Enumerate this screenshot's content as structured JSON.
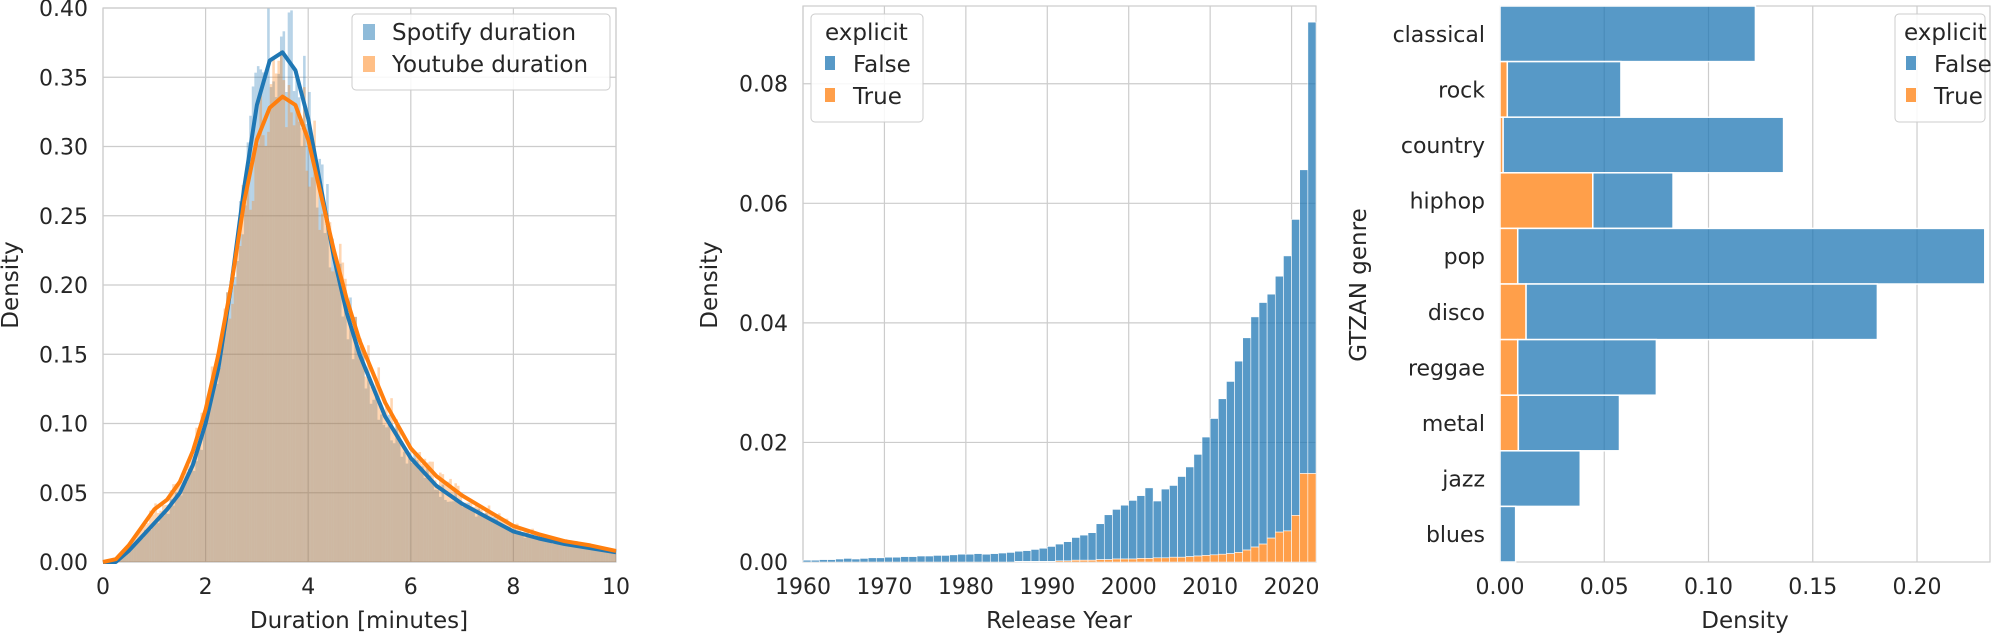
{
  "chart_data": [
    {
      "type": "histogram",
      "xlabel": "Duration [minutes]",
      "ylabel": "Density",
      "xlim": [
        0,
        10
      ],
      "ylim": [
        0,
        0.4
      ],
      "xticks": [
        0,
        2,
        4,
        6,
        8,
        10
      ],
      "yticks": [
        0.0,
        0.05,
        0.1,
        0.15,
        0.2,
        0.25,
        0.3,
        0.35,
        0.4
      ],
      "grid": true,
      "legend": {
        "placement": "top-right"
      },
      "series": [
        {
          "name": "Spotify duration",
          "color": "#1f77b4",
          "histogram": true,
          "kde": [
            [
              0.0,
              0.0
            ],
            [
              0.25,
              0.0
            ],
            [
              0.5,
              0.008
            ],
            [
              0.75,
              0.018
            ],
            [
              1.0,
              0.028
            ],
            [
              1.25,
              0.038
            ],
            [
              1.5,
              0.05
            ],
            [
              1.75,
              0.07
            ],
            [
              2.0,
              0.1
            ],
            [
              2.25,
              0.14
            ],
            [
              2.5,
              0.2
            ],
            [
              2.75,
              0.27
            ],
            [
              3.0,
              0.33
            ],
            [
              3.25,
              0.362
            ],
            [
              3.5,
              0.368
            ],
            [
              3.75,
              0.355
            ],
            [
              4.0,
              0.32
            ],
            [
              4.25,
              0.27
            ],
            [
              4.5,
              0.22
            ],
            [
              4.75,
              0.18
            ],
            [
              5.0,
              0.15
            ],
            [
              5.5,
              0.105
            ],
            [
              6.0,
              0.075
            ],
            [
              6.5,
              0.055
            ],
            [
              7.0,
              0.042
            ],
            [
              7.5,
              0.032
            ],
            [
              8.0,
              0.022
            ],
            [
              8.5,
              0.017
            ],
            [
              9.0,
              0.013
            ],
            [
              9.5,
              0.01
            ],
            [
              10.0,
              0.007
            ]
          ]
        },
        {
          "name": "Youtube duration",
          "color": "#ff7f0e",
          "histogram": true,
          "kde": [
            [
              0.0,
              0.0
            ],
            [
              0.25,
              0.002
            ],
            [
              0.5,
              0.012
            ],
            [
              0.75,
              0.025
            ],
            [
              1.0,
              0.038
            ],
            [
              1.25,
              0.045
            ],
            [
              1.5,
              0.058
            ],
            [
              1.75,
              0.08
            ],
            [
              2.0,
              0.11
            ],
            [
              2.25,
              0.15
            ],
            [
              2.5,
              0.2
            ],
            [
              2.75,
              0.26
            ],
            [
              3.0,
              0.305
            ],
            [
              3.25,
              0.328
            ],
            [
              3.5,
              0.336
            ],
            [
              3.75,
              0.33
            ],
            [
              4.0,
              0.305
            ],
            [
              4.25,
              0.265
            ],
            [
              4.5,
              0.225
            ],
            [
              4.75,
              0.19
            ],
            [
              5.0,
              0.16
            ],
            [
              5.5,
              0.115
            ],
            [
              6.0,
              0.082
            ],
            [
              6.5,
              0.062
            ],
            [
              7.0,
              0.048
            ],
            [
              7.5,
              0.037
            ],
            [
              8.0,
              0.026
            ],
            [
              8.5,
              0.02
            ],
            [
              9.0,
              0.015
            ],
            [
              9.5,
              0.012
            ],
            [
              10.0,
              0.008
            ]
          ]
        }
      ]
    },
    {
      "type": "bar",
      "stacked": true,
      "xlabel": "Release Year",
      "ylabel": "Density",
      "xlim": [
        1960,
        2023
      ],
      "ylim": [
        0,
        0.093
      ],
      "xticks": [
        1960,
        1970,
        1980,
        1990,
        2000,
        2010,
        2020
      ],
      "yticks": [
        0.0,
        0.02,
        0.04,
        0.06,
        0.08
      ],
      "grid": true,
      "legend": {
        "title": "explicit",
        "placement": "top-left"
      },
      "x_years": {
        "start": 1960,
        "end": 2022
      },
      "series": [
        {
          "name": "False",
          "color": "#1f77b4",
          "values": [
            0.0003,
            0.0003,
            0.0004,
            0.0004,
            0.0005,
            0.0006,
            0.0005,
            0.0006,
            0.0007,
            0.0007,
            0.0008,
            0.0008,
            0.0009,
            0.0009,
            0.001,
            0.001,
            0.0011,
            0.0011,
            0.0012,
            0.0013,
            0.0013,
            0.0014,
            0.0013,
            0.0014,
            0.0015,
            0.0016,
            0.0017,
            0.0018,
            0.002,
            0.0022,
            0.0025,
            0.0028,
            0.0032,
            0.0038,
            0.0042,
            0.0046,
            0.006,
            0.0075,
            0.0083,
            0.009,
            0.0098,
            0.0105,
            0.0118,
            0.0095,
            0.0115,
            0.012,
            0.0135,
            0.015,
            0.017,
            0.0198,
            0.0228,
            0.026,
            0.0288,
            0.032,
            0.0355,
            0.0385,
            0.0404,
            0.0408,
            0.0428,
            0.046,
            0.0495,
            0.0508,
            0.0755
          ]
        },
        {
          "name": "True",
          "color": "#ff7f0e",
          "values": [
            0,
            0,
            0,
            0,
            0,
            0,
            0,
            0,
            0,
            0,
            0,
            0,
            0,
            0,
            0,
            0,
            0,
            0,
            0,
            0,
            0,
            0,
            0,
            0,
            0,
            0,
            0.0001,
            0.0001,
            0.0001,
            0.0001,
            0.0001,
            0.0002,
            0.0002,
            0.0003,
            0.0003,
            0.0003,
            0.0004,
            0.0004,
            0.0005,
            0.0005,
            0.0005,
            0.0006,
            0.0006,
            0.0007,
            0.0007,
            0.0008,
            0.0008,
            0.0009,
            0.001,
            0.0011,
            0.0012,
            0.0013,
            0.0014,
            0.0016,
            0.002,
            0.0025,
            0.003,
            0.004,
            0.005,
            0.0052,
            0.0078,
            0.0148,
            0.0148
          ]
        }
      ]
    },
    {
      "type": "bar",
      "orientation": "horizontal",
      "stacked": true,
      "xlabel": "Density",
      "ylabel": "GTZAN genre",
      "xlim": [
        0,
        0.235
      ],
      "xticks": [
        0.0,
        0.05,
        0.1,
        0.15,
        0.2
      ],
      "grid": true,
      "legend": {
        "title": "explicit",
        "placement": "top-right"
      },
      "categories": [
        "classical",
        "rock",
        "country",
        "hiphop",
        "pop",
        "disco",
        "reggae",
        "metal",
        "jazz",
        "blues"
      ],
      "series": [
        {
          "name": "False",
          "color": "#1f77b4",
          "values": [
            0.1225,
            0.0545,
            0.1345,
            0.0385,
            0.224,
            0.1685,
            0.0665,
            0.0485,
            0.0385,
            0.0075
          ]
        },
        {
          "name": "True",
          "color": "#ff7f0e",
          "values": [
            0.0,
            0.0035,
            0.0015,
            0.0445,
            0.0085,
            0.0125,
            0.0085,
            0.0088,
            0.0,
            0.0
          ]
        }
      ]
    }
  ]
}
